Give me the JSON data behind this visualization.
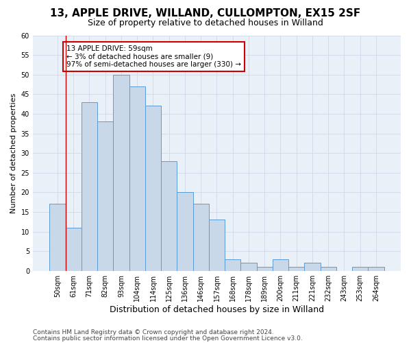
{
  "title1": "13, APPLE DRIVE, WILLAND, CULLOMPTON, EX15 2SF",
  "title2": "Size of property relative to detached houses in Willand",
  "xlabel": "Distribution of detached houses by size in Willand",
  "ylabel": "Number of detached properties",
  "categories": [
    "50sqm",
    "61sqm",
    "71sqm",
    "82sqm",
    "93sqm",
    "104sqm",
    "114sqm",
    "125sqm",
    "136sqm",
    "146sqm",
    "157sqm",
    "168sqm",
    "178sqm",
    "189sqm",
    "200sqm",
    "211sqm",
    "221sqm",
    "232sqm",
    "243sqm",
    "253sqm",
    "264sqm"
  ],
  "values": [
    17,
    11,
    43,
    38,
    50,
    47,
    42,
    28,
    20,
    17,
    13,
    3,
    2,
    1,
    3,
    1,
    2,
    1,
    0,
    1,
    1
  ],
  "bar_color": "#c8d8e8",
  "bar_edge_color": "#5b9bd5",
  "annotation_text": "13 APPLE DRIVE: 59sqm\n← 3% of detached houses are smaller (9)\n97% of semi-detached houses are larger (330) →",
  "annotation_box_color": "#ffffff",
  "annotation_box_edge_color": "#cc0000",
  "highlight_line_color": "#cc0000",
  "ylim": [
    0,
    60
  ],
  "yticks": [
    0,
    5,
    10,
    15,
    20,
    25,
    30,
    35,
    40,
    45,
    50,
    55,
    60
  ],
  "grid_color": "#d0d8e8",
  "background_color": "#eaf0f8",
  "footer1": "Contains HM Land Registry data © Crown copyright and database right 2024.",
  "footer2": "Contains public sector information licensed under the Open Government Licence v3.0.",
  "title1_fontsize": 11,
  "title2_fontsize": 9,
  "xlabel_fontsize": 9,
  "ylabel_fontsize": 8,
  "tick_fontsize": 7,
  "footer_fontsize": 6.5,
  "annotation_fontsize": 7.5
}
